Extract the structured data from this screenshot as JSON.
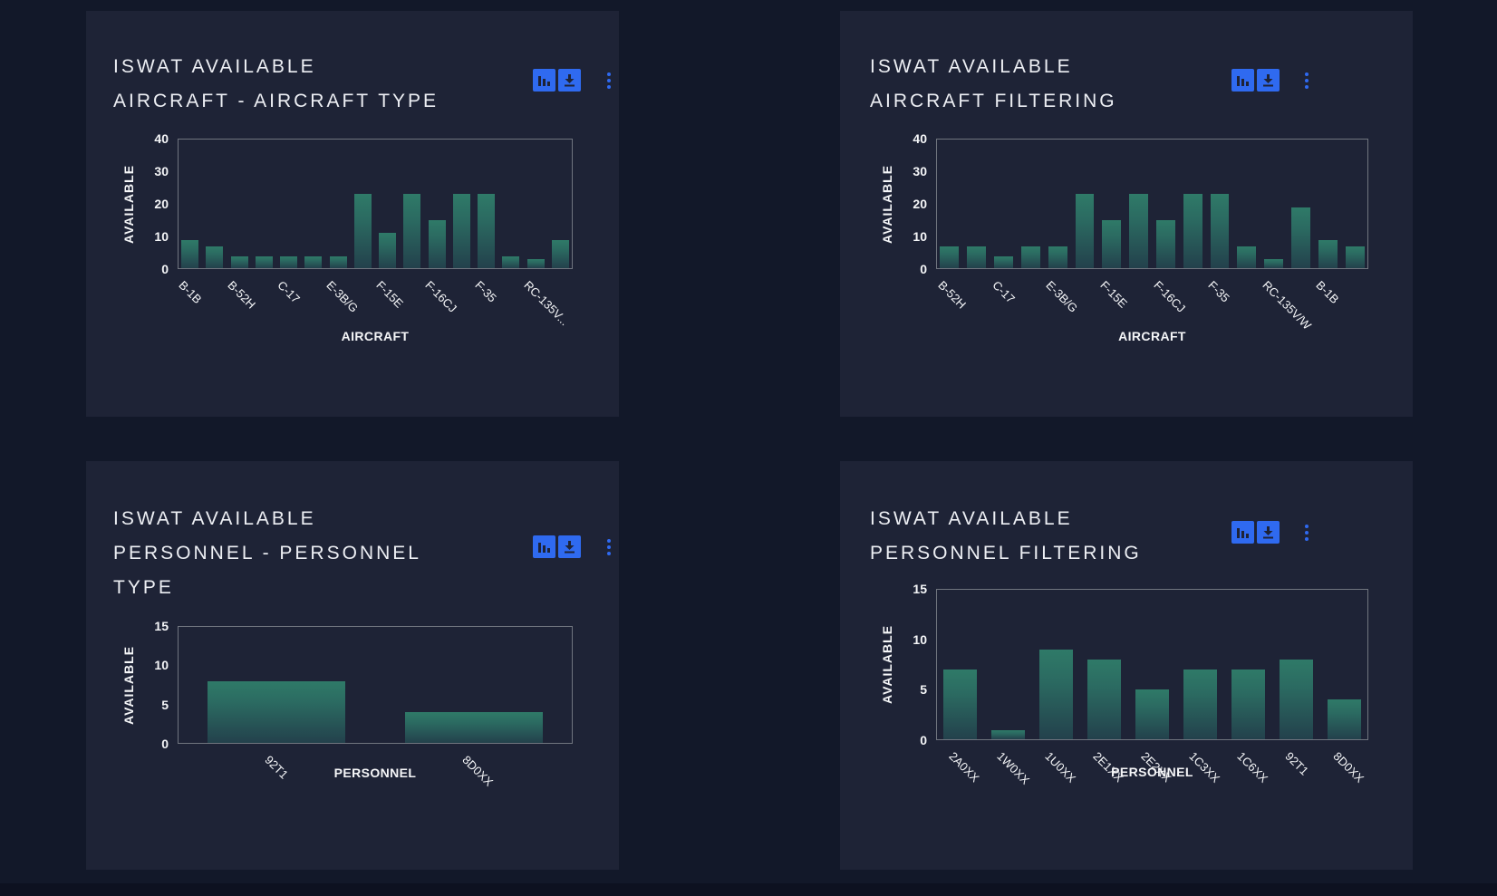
{
  "page": {
    "background": "#121829",
    "footer_background": "#0d1120"
  },
  "colors": {
    "card_background": "#1e2336",
    "accent_blue": "#2f6af0",
    "bar_gradient_top": "#2f7a68",
    "bar_gradient_bottom": "#23414c",
    "axis_border": "#70757f",
    "text": "#f5f6f8"
  },
  "cards": [
    {
      "title_lines": [
        "ISWAT AVAILABLE",
        "AIRCRAFT - AIRCRAFT TYPE"
      ],
      "toolbar": {
        "icons": [
          "bar-chart-icon",
          "download-icon",
          "kebab-menu-icon"
        ]
      }
    },
    {
      "title_lines": [
        "ISWAT AVAILABLE",
        "AIRCRAFT FILTERING"
      ],
      "toolbar": {
        "icons": [
          "bar-chart-icon",
          "download-icon",
          "kebab-menu-icon"
        ]
      }
    },
    {
      "title_lines": [
        "ISWAT AVAILABLE",
        "PERSONNEL - PERSONNEL",
        "TYPE"
      ],
      "toolbar": {
        "icons": [
          "bar-chart-icon",
          "download-icon",
          "kebab-menu-icon"
        ]
      }
    },
    {
      "title_lines": [
        "ISWAT AVAILABLE",
        "PERSONNEL FILTERING"
      ],
      "toolbar": {
        "icons": [
          "bar-chart-icon",
          "download-icon",
          "kebab-menu-icon"
        ]
      }
    }
  ],
  "chart_data": [
    {
      "type": "bar",
      "title": "ISWAT AVAILABLE AIRCRAFT - AIRCRAFT TYPE",
      "categories": [
        "B-1B",
        "",
        "B-52H",
        "",
        "C-17",
        "",
        "E-3B/G",
        "",
        "F-15E",
        "",
        "F-16CJ",
        "",
        "F-35",
        "",
        "RC-135V...",
        ""
      ],
      "values": [
        9,
        7,
        4,
        4,
        4,
        4,
        4,
        23,
        11,
        23,
        15,
        23,
        23,
        4,
        3,
        9
      ],
      "xlabel": "AIRCRAFT",
      "ylabel": "AVAILABLE",
      "ylim": [
        0,
        40
      ],
      "yticks": [
        0,
        10,
        20,
        30,
        40
      ],
      "grid": false,
      "legend": false
    },
    {
      "type": "bar",
      "title": "ISWAT AVAILABLE AIRCRAFT FILTERING",
      "categories": [
        "B-52H",
        "",
        "C-17",
        "",
        "E-3B/G",
        "",
        "F-15E",
        "",
        "F-16CJ",
        "",
        "F-35",
        "",
        "RC-135V/W",
        "",
        "B-1B",
        ""
      ],
      "values": [
        7,
        7,
        4,
        7,
        7,
        23,
        15,
        23,
        15,
        23,
        23,
        7,
        3,
        19,
        9,
        7
      ],
      "xlabel": "AIRCRAFT",
      "ylabel": "AVAILABLE",
      "ylim": [
        0,
        40
      ],
      "yticks": [
        0,
        10,
        20,
        30,
        40
      ],
      "grid": false,
      "legend": false
    },
    {
      "type": "bar",
      "title": "ISWAT AVAILABLE PERSONNEL - PERSONNEL TYPE",
      "categories": [
        "92T1",
        "8D0XX"
      ],
      "values": [
        8,
        4
      ],
      "xlabel": "PERSONNEL",
      "ylabel": "AVAILABLE",
      "ylim": [
        0,
        15
      ],
      "yticks": [
        0,
        5,
        10,
        15
      ],
      "grid": false,
      "legend": false
    },
    {
      "type": "bar",
      "title": "ISWAT AVAILABLE PERSONNEL FILTERING",
      "categories": [
        "2A0XX",
        "1W0XX",
        "1U0XX",
        "2E1XX",
        "2E2XX",
        "1C3XX",
        "1C6XX",
        "92T1",
        "8D0XX"
      ],
      "values": [
        7,
        1,
        9,
        8,
        5,
        7,
        7,
        8,
        4
      ],
      "xlabel": "PERSONNEL",
      "ylabel": "AVAILABLE",
      "ylim": [
        0,
        15
      ],
      "yticks": [
        0,
        5,
        10,
        15
      ],
      "grid": false,
      "legend": false
    }
  ]
}
